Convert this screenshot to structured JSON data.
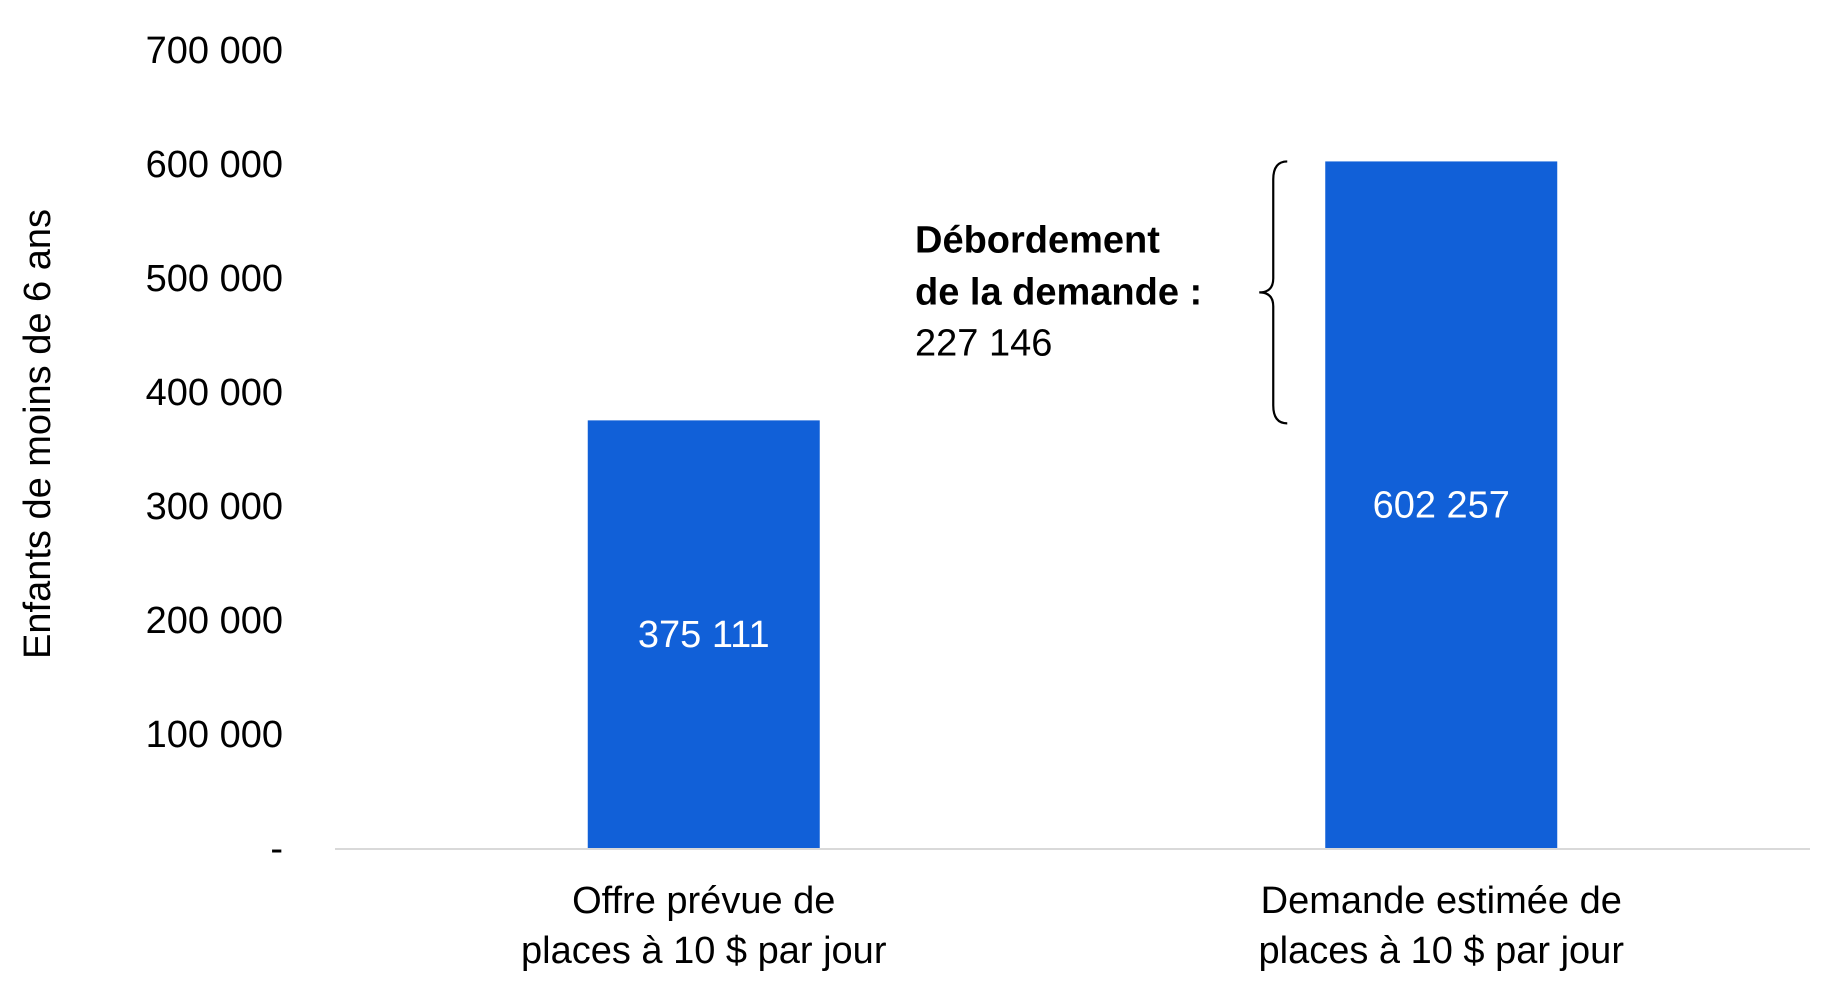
{
  "chart_data": {
    "type": "bar",
    "title": "",
    "xlabel": "",
    "ylabel": "Enfants de moins de 6 ans",
    "ylim": [
      0,
      700000
    ],
    "yticks": [
      {
        "value": 0,
        "label": "-"
      },
      {
        "value": 100000,
        "label": "100 000"
      },
      {
        "value": 200000,
        "label": "200 000"
      },
      {
        "value": 300000,
        "label": "300 000"
      },
      {
        "value": 400000,
        "label": "400 000"
      },
      {
        "value": 500000,
        "label": "500 000"
      },
      {
        "value": 600000,
        "label": "600 000"
      },
      {
        "value": 700000,
        "label": "700 000"
      }
    ],
    "grid": false,
    "legend": "none",
    "categories": [
      [
        "Offre prévue de",
        "places à 10 $ par jour"
      ],
      [
        "Demande estimée de",
        "places à 10 $ par jour"
      ]
    ],
    "values": [
      375111,
      602257
    ],
    "data_labels": [
      "375 111",
      "602 257"
    ],
    "annotation": {
      "line1": "Débordement",
      "line2": "de la demande :",
      "value_label": "227 146",
      "value": 227146,
      "from_value": 375111,
      "to_value": 602257
    },
    "colors": {
      "bar": "#1160D8",
      "axis": "#D9D9D9",
      "text": "#000000",
      "data_label": "#FFFFFF"
    }
  }
}
